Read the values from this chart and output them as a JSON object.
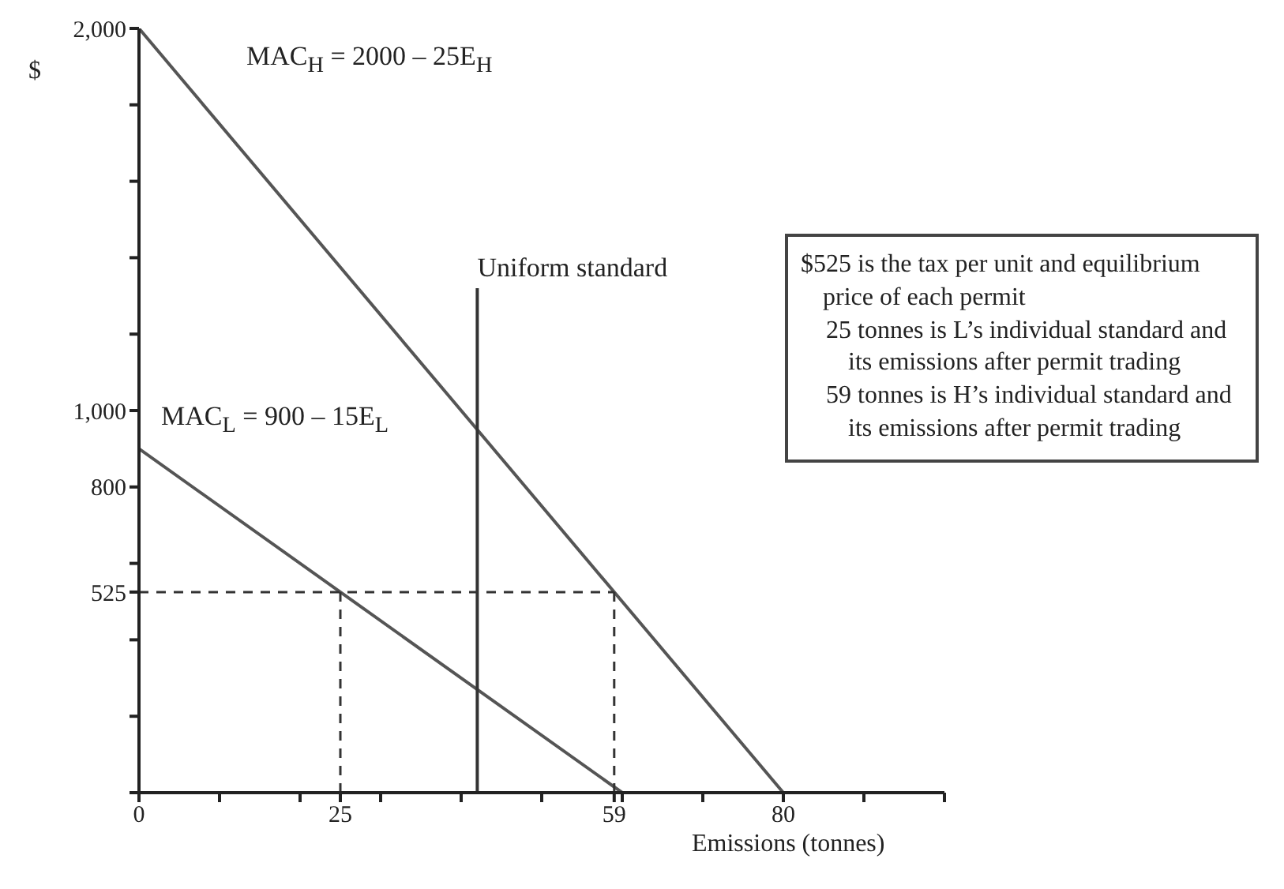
{
  "chart_data": {
    "type": "line",
    "ylabel": "$",
    "xlabel": "Emissions (tonnes)",
    "xlim": [
      0,
      100
    ],
    "ylim": [
      0,
      2000
    ],
    "xticks": [
      0,
      {
        "value": 10,
        "label": null
      },
      {
        "value": 20,
        "label": null
      },
      25,
      {
        "value": 30,
        "label": null
      },
      {
        "value": 40,
        "label": null
      },
      {
        "value": 50,
        "label": null
      },
      59,
      {
        "value": 60,
        "label": null
      },
      {
        "value": 70,
        "label": null
      },
      80,
      {
        "value": 90,
        "label": null
      },
      {
        "value": 100,
        "label": null
      }
    ],
    "yticks": [
      {
        "value": 0,
        "label": null
      },
      {
        "value": 200,
        "label": null
      },
      {
        "value": 400,
        "label": null
      },
      {
        "value": 525,
        "label": "525"
      },
      {
        "value": 600,
        "label": null
      },
      {
        "value": 800,
        "label": "800"
      },
      {
        "value": 1000,
        "label": "1,000"
      },
      {
        "value": 1200,
        "label": null
      },
      {
        "value": 1400,
        "label": null
      },
      {
        "value": 1600,
        "label": null
      },
      {
        "value": 1800,
        "label": null
      },
      {
        "value": 2000,
        "label": "2,000"
      }
    ],
    "marker": "none",
    "series": [
      {
        "name": "MAC$_{H}$ = 2000 – 25E$_{H}$",
        "color": "#555555",
        "x": [
          0,
          80
        ],
        "values": [
          2000,
          0
        ]
      },
      {
        "name": "MAC$_{L}$ = 900 – 15E$_{L}$",
        "color": "#555555",
        "x": [
          0,
          60
        ],
        "values": [
          900,
          0
        ]
      },
      {
        "color": "#333333",
        "x": [
          42,
          42
        ],
        "values": [
          0,
          1320
        ]
      },
      {
        "color": "#333333",
        "x": [
          0,
          59
        ],
        "values": [
          525,
          525
        ],
        "line_style": "dashed"
      },
      {
        "color": "#333333",
        "x": [
          25,
          25
        ],
        "values": [
          0,
          525
        ],
        "line_style": "dashed"
      },
      {
        "color": "#333333",
        "x": [
          59,
          59
        ],
        "values": [
          0,
          525
        ],
        "line_style": "dashed"
      }
    ],
    "annotations": [
      {
        "text": "Uniform standard",
        "x": 42,
        "y": 1330
      },
      "$525 is the tax per unit and equilibrium price of each permit",
      "25 tonnes is L’s individual standard and its emissions after permit trading",
      "59 tonnes is H’s individual standard and its emissions after permit trading"
    ]
  }
}
